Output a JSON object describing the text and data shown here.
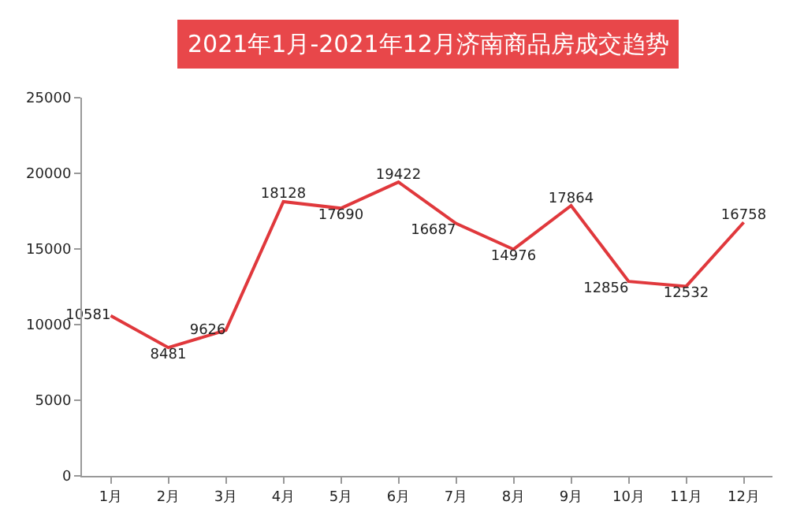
{
  "chart_data": {
    "type": "line",
    "title": "2021年1月-2021年12月济南商品房成交趋势",
    "categories": [
      "1月",
      "2月",
      "3月",
      "4月",
      "5月",
      "6月",
      "7月",
      "8月",
      "9月",
      "10月",
      "11月",
      "12月"
    ],
    "series": [
      {
        "color": "#e0383c",
        "values": [
          10581,
          8481,
          9626,
          18128,
          17690,
          19422,
          16687,
          14976,
          17864,
          12856,
          12532,
          16758
        ]
      }
    ],
    "ylim": [
      0,
      25000
    ],
    "yticks": [
      0,
      5000,
      10000,
      15000,
      20000,
      25000
    ],
    "data_labels": true,
    "marker": "none",
    "line_style": "solid"
  }
}
